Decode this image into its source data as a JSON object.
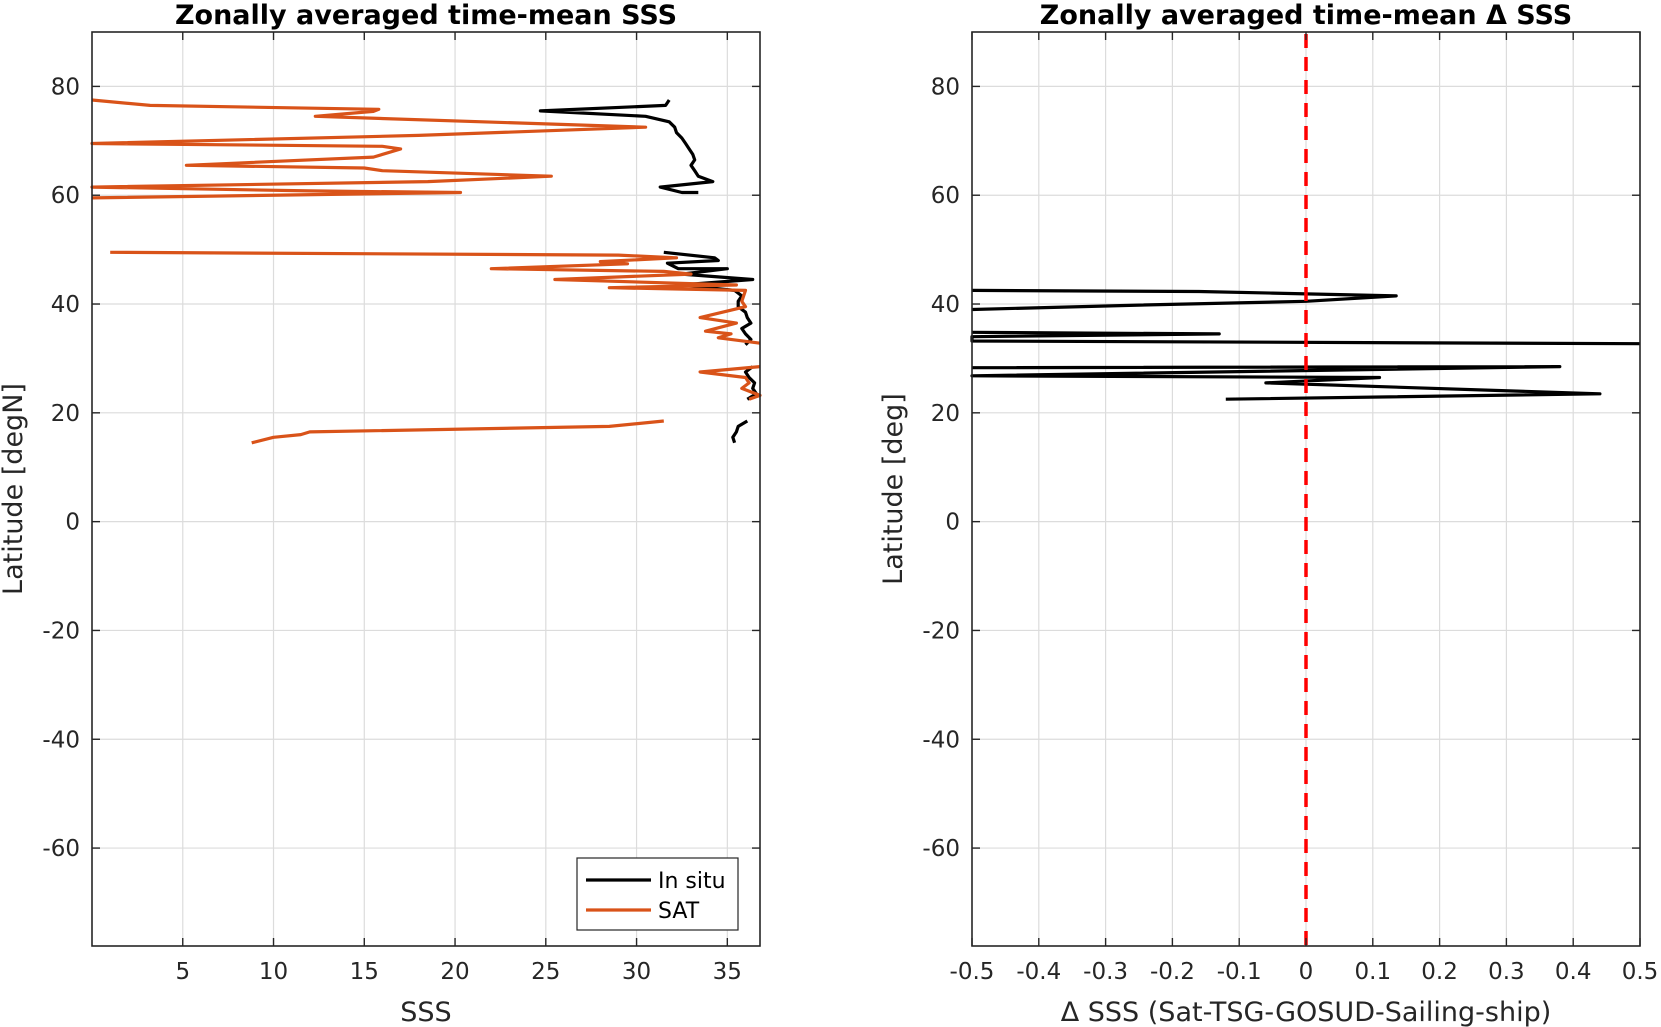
{
  "chart_data": [
    {
      "type": "line",
      "title": "Zonally averaged time-mean SSS",
      "xlabel": "SSS",
      "ylabel": "Latitude [degN]",
      "xlim": [
        0,
        36.8
      ],
      "ylim": [
        -78,
        90
      ],
      "xticks": [
        5,
        10,
        15,
        20,
        25,
        30,
        35
      ],
      "yticks": [
        -60,
        -40,
        -20,
        0,
        20,
        40,
        60,
        80
      ],
      "grid": true,
      "legend_position": "bottom-right",
      "series": [
        {
          "name": "In situ",
          "color": "#000000",
          "points": [
            [
              31.8,
              77.5
            ],
            [
              31.6,
              76.5
            ],
            [
              24.7,
              75.5
            ],
            [
              30.5,
              74.5
            ],
            [
              31.8,
              73.5
            ],
            [
              32.1,
              72.5
            ],
            [
              32.2,
              71.5
            ],
            [
              32.5,
              70.5
            ],
            [
              32.7,
              69.5
            ],
            [
              32.9,
              68.5
            ],
            [
              33.1,
              67.5
            ],
            [
              33.2,
              66.5
            ],
            [
              33.0,
              65.5
            ],
            [
              33.2,
              64.5
            ],
            [
              33.4,
              63.5
            ],
            [
              34.2,
              62.5
            ],
            [
              31.3,
              61.5
            ],
            [
              32.5,
              60.5
            ],
            [
              33.4,
              60.5
            ],
            null,
            [
              31.5,
              49.5
            ],
            [
              34.3,
              48.5
            ],
            [
              34.5,
              48.0
            ],
            [
              31.7,
              47.5
            ],
            [
              32.3,
              46.5
            ],
            [
              35.0,
              46.5
            ],
            [
              32.5,
              45.5
            ],
            [
              36.4,
              44.5
            ],
            [
              32.4,
              43.5
            ],
            [
              35.4,
              42.5
            ],
            [
              35.8,
              41.5
            ],
            [
              35.6,
              40.5
            ],
            [
              35.6,
              39.5
            ],
            [
              36.0,
              38.5
            ],
            [
              36.1,
              37.5
            ],
            [
              36.3,
              36.5
            ],
            [
              35.8,
              35.5
            ],
            [
              36.0,
              34.5
            ],
            [
              36.3,
              33.5
            ],
            [
              36.0,
              32.5
            ],
            null,
            [
              36.4,
              28.5
            ],
            [
              36.0,
              27.5
            ],
            [
              36.2,
              26.5
            ],
            [
              36.5,
              25.5
            ],
            [
              36.4,
              24.5
            ],
            [
              36.6,
              23.5
            ],
            [
              36.1,
              22.5
            ],
            null,
            [
              36.1,
              18.5
            ],
            [
              35.6,
              17.5
            ],
            [
              35.5,
              16.5
            ],
            [
              35.3,
              15.5
            ],
            [
              35.4,
              14.5
            ]
          ]
        },
        {
          "name": "SAT",
          "color": "#d95319",
          "points": [
            [
              0.0,
              77.5
            ],
            [
              3.2,
              76.5
            ],
            [
              15.8,
              75.8
            ],
            [
              15.5,
              75.4
            ],
            [
              12.3,
              74.5
            ],
            [
              30.5,
              72.5
            ],
            [
              18.0,
              71.0
            ],
            [
              0.0,
              69.5
            ],
            [
              16.0,
              69.0
            ],
            [
              17.0,
              68.5
            ],
            [
              15.5,
              67.0
            ],
            [
              5.2,
              65.5
            ],
            [
              15.0,
              65.0
            ],
            [
              16.0,
              64.5
            ],
            [
              25.3,
              63.5
            ],
            [
              18.5,
              62.5
            ],
            [
              0.0,
              61.5
            ],
            [
              12.0,
              60.8
            ],
            [
              20.3,
              60.5
            ],
            [
              0.0,
              59.5
            ],
            null,
            [
              1.0,
              49.5
            ],
            [
              29.0,
              49.0
            ],
            [
              32.2,
              48.5
            ],
            [
              28.0,
              47.8
            ],
            [
              29.5,
              47.4
            ],
            [
              22.0,
              46.5
            ],
            [
              31.5,
              46.0
            ],
            [
              33.0,
              45.5
            ],
            [
              25.5,
              44.5
            ],
            [
              35.5,
              43.5
            ],
            [
              28.5,
              43.0
            ],
            [
              36.0,
              42.5
            ],
            [
              35.8,
              40.5
            ],
            [
              36.0,
              39.5
            ],
            [
              33.5,
              37.5
            ],
            [
              35.5,
              36.5
            ],
            [
              33.8,
              35.0
            ],
            [
              35.2,
              34.5
            ],
            [
              34.5,
              33.8
            ],
            [
              36.8,
              32.8
            ],
            null,
            [
              36.8,
              28.5
            ],
            [
              33.5,
              27.5
            ],
            [
              36.0,
              26.5
            ],
            [
              36.2,
              25.5
            ],
            [
              35.8,
              24.5
            ],
            [
              36.8,
              23.2
            ],
            [
              36.2,
              22.5
            ],
            null,
            [
              31.5,
              18.5
            ],
            [
              28.5,
              17.5
            ],
            [
              12.0,
              16.5
            ],
            [
              11.5,
              16.0
            ],
            [
              10.0,
              15.5
            ],
            [
              8.8,
              14.5
            ]
          ]
        }
      ]
    },
    {
      "type": "line",
      "title": "Zonally averaged time-mean Δ SSS",
      "xlabel": "Δ SSS (Sat-TSG-GOSUD-Sailing-ship)",
      "ylabel": "Latitude [deg]",
      "xlim": [
        -0.5,
        0.5
      ],
      "ylim": [
        -78,
        90
      ],
      "xticks": [
        -0.5,
        -0.4,
        -0.3,
        -0.2,
        -0.1,
        0,
        0.1,
        0.2,
        0.3,
        0.4,
        0.5
      ],
      "xtick_labels": [
        "-0.5",
        "-0.4",
        "-0.3",
        "-0.2",
        "-0.1",
        "0",
        "0.1",
        "0.2",
        "0.3",
        "0.4",
        "0.5"
      ],
      "yticks": [
        -60,
        -40,
        -20,
        0,
        20,
        40,
        60,
        80
      ],
      "grid": true,
      "reference_line": {
        "x": 0,
        "color": "#ff0000",
        "style": "dashed"
      },
      "series": [
        {
          "color": "#000000",
          "points": [
            [
              -0.5,
              42.5
            ],
            [
              -0.16,
              42.3
            ],
            [
              -0.05,
              42.0
            ],
            [
              0.135,
              41.5
            ],
            [
              0.0,
              40.5
            ],
            [
              -0.25,
              39.8
            ],
            [
              -0.5,
              39.0
            ],
            null,
            [
              -0.5,
              34.8
            ],
            [
              -0.13,
              34.5
            ],
            [
              -0.5,
              34.0
            ],
            [
              -0.5,
              33.2
            ],
            [
              0.5,
              32.7
            ],
            null,
            [
              -0.5,
              28.3
            ],
            [
              0.38,
              28.5
            ],
            [
              -0.5,
              26.8
            ],
            [
              0.11,
              26.5
            ],
            [
              -0.06,
              25.5
            ],
            [
              0.44,
              23.5
            ],
            [
              -0.12,
              22.5
            ]
          ]
        }
      ]
    }
  ],
  "legend": {
    "items": [
      {
        "label": "In situ",
        "color": "#000000"
      },
      {
        "label": "SAT",
        "color": "#d95319"
      }
    ]
  }
}
